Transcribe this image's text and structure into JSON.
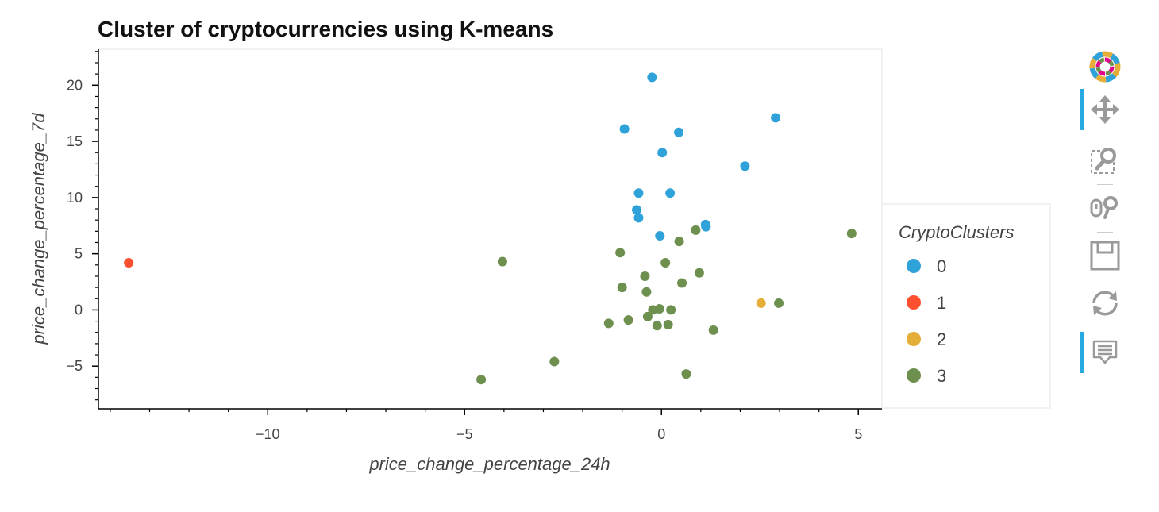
{
  "chart_data": {
    "type": "scatter",
    "title": "Cluster of cryptocurrencies using K-means",
    "xlabel": "price_change_percentage_24h",
    "ylabel": "price_change_percentage_7d",
    "xlim": [
      -14.3,
      5.6
    ],
    "ylim": [
      -8.8,
      23.2
    ],
    "xticks": [
      -10,
      -5,
      0,
      5
    ],
    "yticks": [
      -5,
      0,
      5,
      10,
      15,
      20
    ],
    "xtick_labels": [
      "−10",
      "−5",
      "0",
      "5"
    ],
    "ytick_labels": [
      "−5",
      "0",
      "5",
      "10",
      "15",
      "20"
    ],
    "legend": {
      "title": "CryptoClusters",
      "placement": "right"
    },
    "series": [
      {
        "name": "0",
        "color": "#30a2da",
        "points": [
          {
            "x": -0.24,
            "y": 20.7
          },
          {
            "x": 2.9,
            "y": 17.1
          },
          {
            "x": -0.94,
            "y": 16.1
          },
          {
            "x": 0.44,
            "y": 15.8
          },
          {
            "x": 0.02,
            "y": 14.0
          },
          {
            "x": 2.12,
            "y": 12.8
          },
          {
            "x": -0.58,
            "y": 10.4
          },
          {
            "x": 0.22,
            "y": 10.4
          },
          {
            "x": -0.63,
            "y": 8.9
          },
          {
            "x": -0.58,
            "y": 8.2
          },
          {
            "x": 1.12,
            "y": 7.6
          },
          {
            "x": 1.13,
            "y": 7.4
          },
          {
            "x": -0.04,
            "y": 6.6
          }
        ]
      },
      {
        "name": "1",
        "color": "#fc4f30",
        "points": [
          {
            "x": -13.53,
            "y": 4.2
          }
        ]
      },
      {
        "name": "2",
        "color": "#e5ae38",
        "points": [
          {
            "x": 2.53,
            "y": 0.6
          }
        ]
      },
      {
        "name": "3",
        "color": "#6d904f",
        "points": [
          {
            "x": 4.83,
            "y": 6.8
          },
          {
            "x": 0.87,
            "y": 7.1
          },
          {
            "x": 0.45,
            "y": 6.1
          },
          {
            "x": -4.04,
            "y": 4.3
          },
          {
            "x": -1.05,
            "y": 5.1
          },
          {
            "x": 0.1,
            "y": 4.2
          },
          {
            "x": -0.42,
            "y": 3.0
          },
          {
            "x": 0.96,
            "y": 3.3
          },
          {
            "x": 0.52,
            "y": 2.4
          },
          {
            "x": -1.0,
            "y": 2.0
          },
          {
            "x": -0.38,
            "y": 1.6
          },
          {
            "x": 2.98,
            "y": 0.6
          },
          {
            "x": -0.22,
            "y": 0.0
          },
          {
            "x": -0.05,
            "y": 0.1
          },
          {
            "x": 0.24,
            "y": 0.0
          },
          {
            "x": -0.35,
            "y": -0.6
          },
          {
            "x": -0.84,
            "y": -0.9
          },
          {
            "x": -1.34,
            "y": -1.2
          },
          {
            "x": -0.11,
            "y": -1.4
          },
          {
            "x": 0.17,
            "y": -1.3
          },
          {
            "x": 1.32,
            "y": -1.8
          },
          {
            "x": -2.72,
            "y": -4.6
          },
          {
            "x": 0.63,
            "y": -5.7
          },
          {
            "x": -4.58,
            "y": -6.2
          }
        ]
      }
    ]
  },
  "toolbar": {
    "tools": [
      {
        "name": "bokeh-logo",
        "icon": "bokeh-logo-icon",
        "active": false
      },
      {
        "name": "pan-tool",
        "icon": "pan-icon",
        "active": true
      },
      {
        "name": "box-zoom-tool",
        "icon": "box-zoom-icon",
        "active": false
      },
      {
        "name": "wheel-zoom-tool",
        "icon": "wheel-zoom-icon",
        "active": false
      },
      {
        "name": "save-tool",
        "icon": "save-icon",
        "active": false
      },
      {
        "name": "reset-tool",
        "icon": "reset-icon",
        "active": false
      },
      {
        "name": "hover-tool",
        "icon": "hover-icon",
        "active": true
      }
    ]
  }
}
